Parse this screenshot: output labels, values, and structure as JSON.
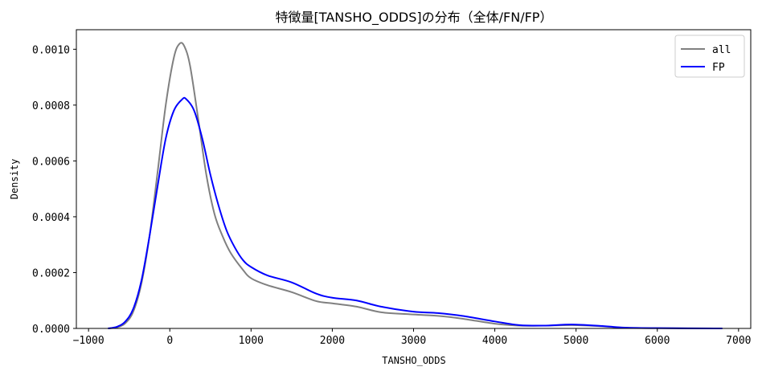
{
  "chart_data": {
    "type": "line",
    "title": "特徴量[TANSHO_ODDS]の分布（全体/FN/FP）",
    "xlabel": "TANSHO_ODDS",
    "ylabel": "Density",
    "xlim": [
      -1150,
      7150
    ],
    "ylim": [
      0,
      0.00107
    ],
    "x_ticks": [
      -1000,
      0,
      1000,
      2000,
      3000,
      4000,
      5000,
      6000,
      7000
    ],
    "x_tick_labels": [
      "−1000",
      "0",
      "1000",
      "2000",
      "3000",
      "4000",
      "5000",
      "6000",
      "7000"
    ],
    "y_ticks": [
      0,
      0.0002,
      0.0004,
      0.0006,
      0.0008,
      0.001
    ],
    "y_tick_labels": [
      "0.0000",
      "0.0002",
      "0.0004",
      "0.0006",
      "0.0008",
      "0.0010"
    ],
    "grid": false,
    "legend_position": "top-right",
    "series": [
      {
        "name": "all",
        "color": "#808080",
        "points": [
          [
            -760,
            0
          ],
          [
            -650,
            4e-06
          ],
          [
            -550,
            1.8e-05
          ],
          [
            -450,
            6e-05
          ],
          [
            -350,
            0.00016
          ],
          [
            -250,
            0.00033
          ],
          [
            -150,
            0.00056
          ],
          [
            -50,
            0.0008
          ],
          [
            50,
            0.00097
          ],
          [
            120,
            0.00102
          ],
          [
            180,
            0.00101
          ],
          [
            250,
            0.00094
          ],
          [
            350,
            0.00075
          ],
          [
            450,
            0.00055
          ],
          [
            550,
            0.00041
          ],
          [
            650,
            0.00033
          ],
          [
            750,
            0.00027
          ],
          [
            900,
            0.00021
          ],
          [
            1000,
            0.00018
          ],
          [
            1200,
            0.000155
          ],
          [
            1500,
            0.00013
          ],
          [
            1800,
            9.8e-05
          ],
          [
            2000,
            9e-05
          ],
          [
            2300,
            7.8e-05
          ],
          [
            2600,
            5.8e-05
          ],
          [
            3000,
            5e-05
          ],
          [
            3300,
            4.5e-05
          ],
          [
            3600,
            3.5e-05
          ],
          [
            4000,
            1.7e-05
          ],
          [
            4300,
            1e-05
          ],
          [
            4600,
            1e-05
          ],
          [
            4950,
            1.2e-05
          ],
          [
            5300,
            8e-06
          ],
          [
            5600,
            2e-06
          ],
          [
            6000,
            1e-06
          ],
          [
            6800,
            0
          ]
        ]
      },
      {
        "name": "FP",
        "color": "#0000ff",
        "points": [
          [
            -760,
            0
          ],
          [
            -650,
            6e-06
          ],
          [
            -550,
            2.4e-05
          ],
          [
            -450,
            7e-05
          ],
          [
            -350,
            0.00017
          ],
          [
            -250,
            0.00033
          ],
          [
            -150,
            0.00051
          ],
          [
            -50,
            0.00068
          ],
          [
            50,
            0.00078
          ],
          [
            150,
            0.00082
          ],
          [
            200,
            0.000822
          ],
          [
            300,
            0.00078
          ],
          [
            400,
            0.00068
          ],
          [
            500,
            0.00055
          ],
          [
            600,
            0.00044
          ],
          [
            700,
            0.00035
          ],
          [
            800,
            0.00029
          ],
          [
            900,
            0.000245
          ],
          [
            1000,
            0.00022
          ],
          [
            1200,
            0.00019
          ],
          [
            1500,
            0.000165
          ],
          [
            1800,
            0.000125
          ],
          [
            2000,
            0.00011
          ],
          [
            2300,
            0.0001
          ],
          [
            2600,
            7.8e-05
          ],
          [
            3000,
            6e-05
          ],
          [
            3300,
            5.5e-05
          ],
          [
            3600,
            4.5e-05
          ],
          [
            4000,
            2.5e-05
          ],
          [
            4300,
            1.2e-05
          ],
          [
            4600,
            1e-05
          ],
          [
            4950,
            1.4e-05
          ],
          [
            5300,
            9e-06
          ],
          [
            5600,
            3e-06
          ],
          [
            6000,
            1e-06
          ],
          [
            6800,
            0
          ]
        ]
      }
    ]
  }
}
